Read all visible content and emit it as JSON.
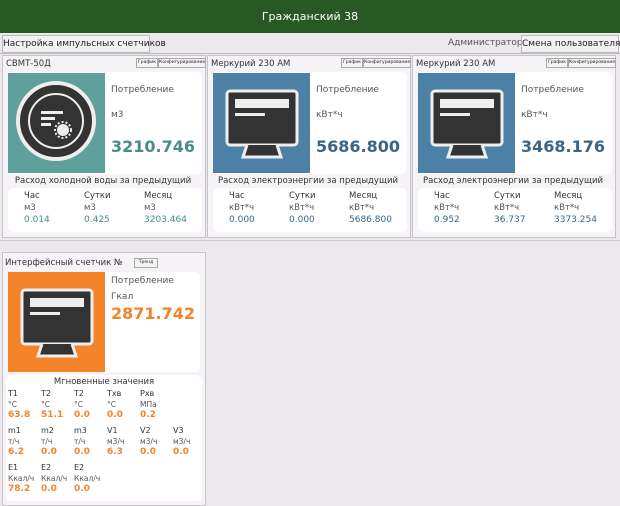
{
  "header": {
    "title": "Гражданский 38"
  },
  "toolbar": {
    "settings_button": "Настройка импульсных счетчиков",
    "user_label": "Администратор",
    "switch_button": "Смена пользователя"
  },
  "meters": [
    {
      "name": "СВМТ-50Д",
      "buttons": [
        "График",
        "Конфигурирование"
      ],
      "consumption_label": "Потребление",
      "unit": "м3",
      "value": "3210.746",
      "color": "#5fa09b",
      "value_color": "#4a8c88",
      "period_title": "Расход холодной воды за предыдущий",
      "columns": [
        {
          "label": "Час",
          "unit": "м3",
          "value": "0.014"
        },
        {
          "label": "Сутки",
          "unit": "м3",
          "value": "0.425"
        },
        {
          "label": "Месяц",
          "unit": "м3",
          "value": "3203.464"
        }
      ]
    },
    {
      "name": "Меркурий 230 АМ",
      "buttons": [
        "График",
        "Конфигурирование"
      ],
      "consumption_label": "Потребление",
      "unit": "кВт*ч",
      "value": "5686.800",
      "color": "#4c80a4",
      "value_color": "#3a6584",
      "period_title": "Расход электроэнергии за предыдущий",
      "columns": [
        {
          "label": "Час",
          "unit": "кВт*ч",
          "value": "0.000"
        },
        {
          "label": "Сутки",
          "unit": "кВт*ч",
          "value": "0.000"
        },
        {
          "label": "Месяц",
          "unit": "кВт*ч",
          "value": "5686.800"
        }
      ]
    },
    {
      "name": "Меркурий 230 АМ",
      "buttons": [
        "График",
        "Конфигурирование"
      ],
      "consumption_label": "Потребление",
      "unit": "кВт*ч",
      "value": "3468.176",
      "color": "#4c80a4",
      "value_color": "#3a6584",
      "period_title": "Расход электроэнергии за предыдущий",
      "columns": [
        {
          "label": "Час",
          "unit": "кВт*ч",
          "value": "0.952"
        },
        {
          "label": "Сутки",
          "unit": "кВт*ч",
          "value": "36.737"
        },
        {
          "label": "Месяц",
          "unit": "кВт*ч",
          "value": "3373.254"
        }
      ]
    }
  ],
  "interface_meter": {
    "name": "Интерфейсный счетчик №",
    "button": "Тренд",
    "consumption_label": "Потребление",
    "unit": "Гкал",
    "value": "2871.742",
    "color": "#f5832a",
    "value_color": "#f5832a",
    "instant_title": "Мгновенные значения",
    "rows": [
      [
        {
          "label": "T1",
          "unit": "°C",
          "value": "63.8"
        },
        {
          "label": "T2",
          "unit": "°C",
          "value": "51.1"
        },
        {
          "label": "T2",
          "unit": "°C",
          "value": "0.0"
        },
        {
          "label": "Txв",
          "unit": "°C",
          "value": "0.0"
        },
        {
          "label": "Pxв",
          "unit": "МПа",
          "value": "0.2"
        }
      ],
      [
        {
          "label": "m1",
          "unit": "т/ч",
          "value": "6.2"
        },
        {
          "label": "m2",
          "unit": "т/ч",
          "value": "0.0"
        },
        {
          "label": "m3",
          "unit": "т/ч",
          "value": "0.0"
        },
        {
          "label": "V1",
          "unit": "м3/ч",
          "value": "6.3"
        },
        {
          "label": "V2",
          "unit": "м3/ч",
          "value": "0.0"
        },
        {
          "label": "V3",
          "unit": "м3/ч",
          "value": "0.0"
        }
      ],
      [
        {
          "label": "E1",
          "unit": "Ккал/ч",
          "value": "78.2"
        },
        {
          "label": "E2",
          "unit": "Ккал/ч",
          "value": "0.0"
        },
        {
          "label": "E2",
          "unit": "Ккал/ч",
          "value": "0.0"
        }
      ]
    ]
  }
}
